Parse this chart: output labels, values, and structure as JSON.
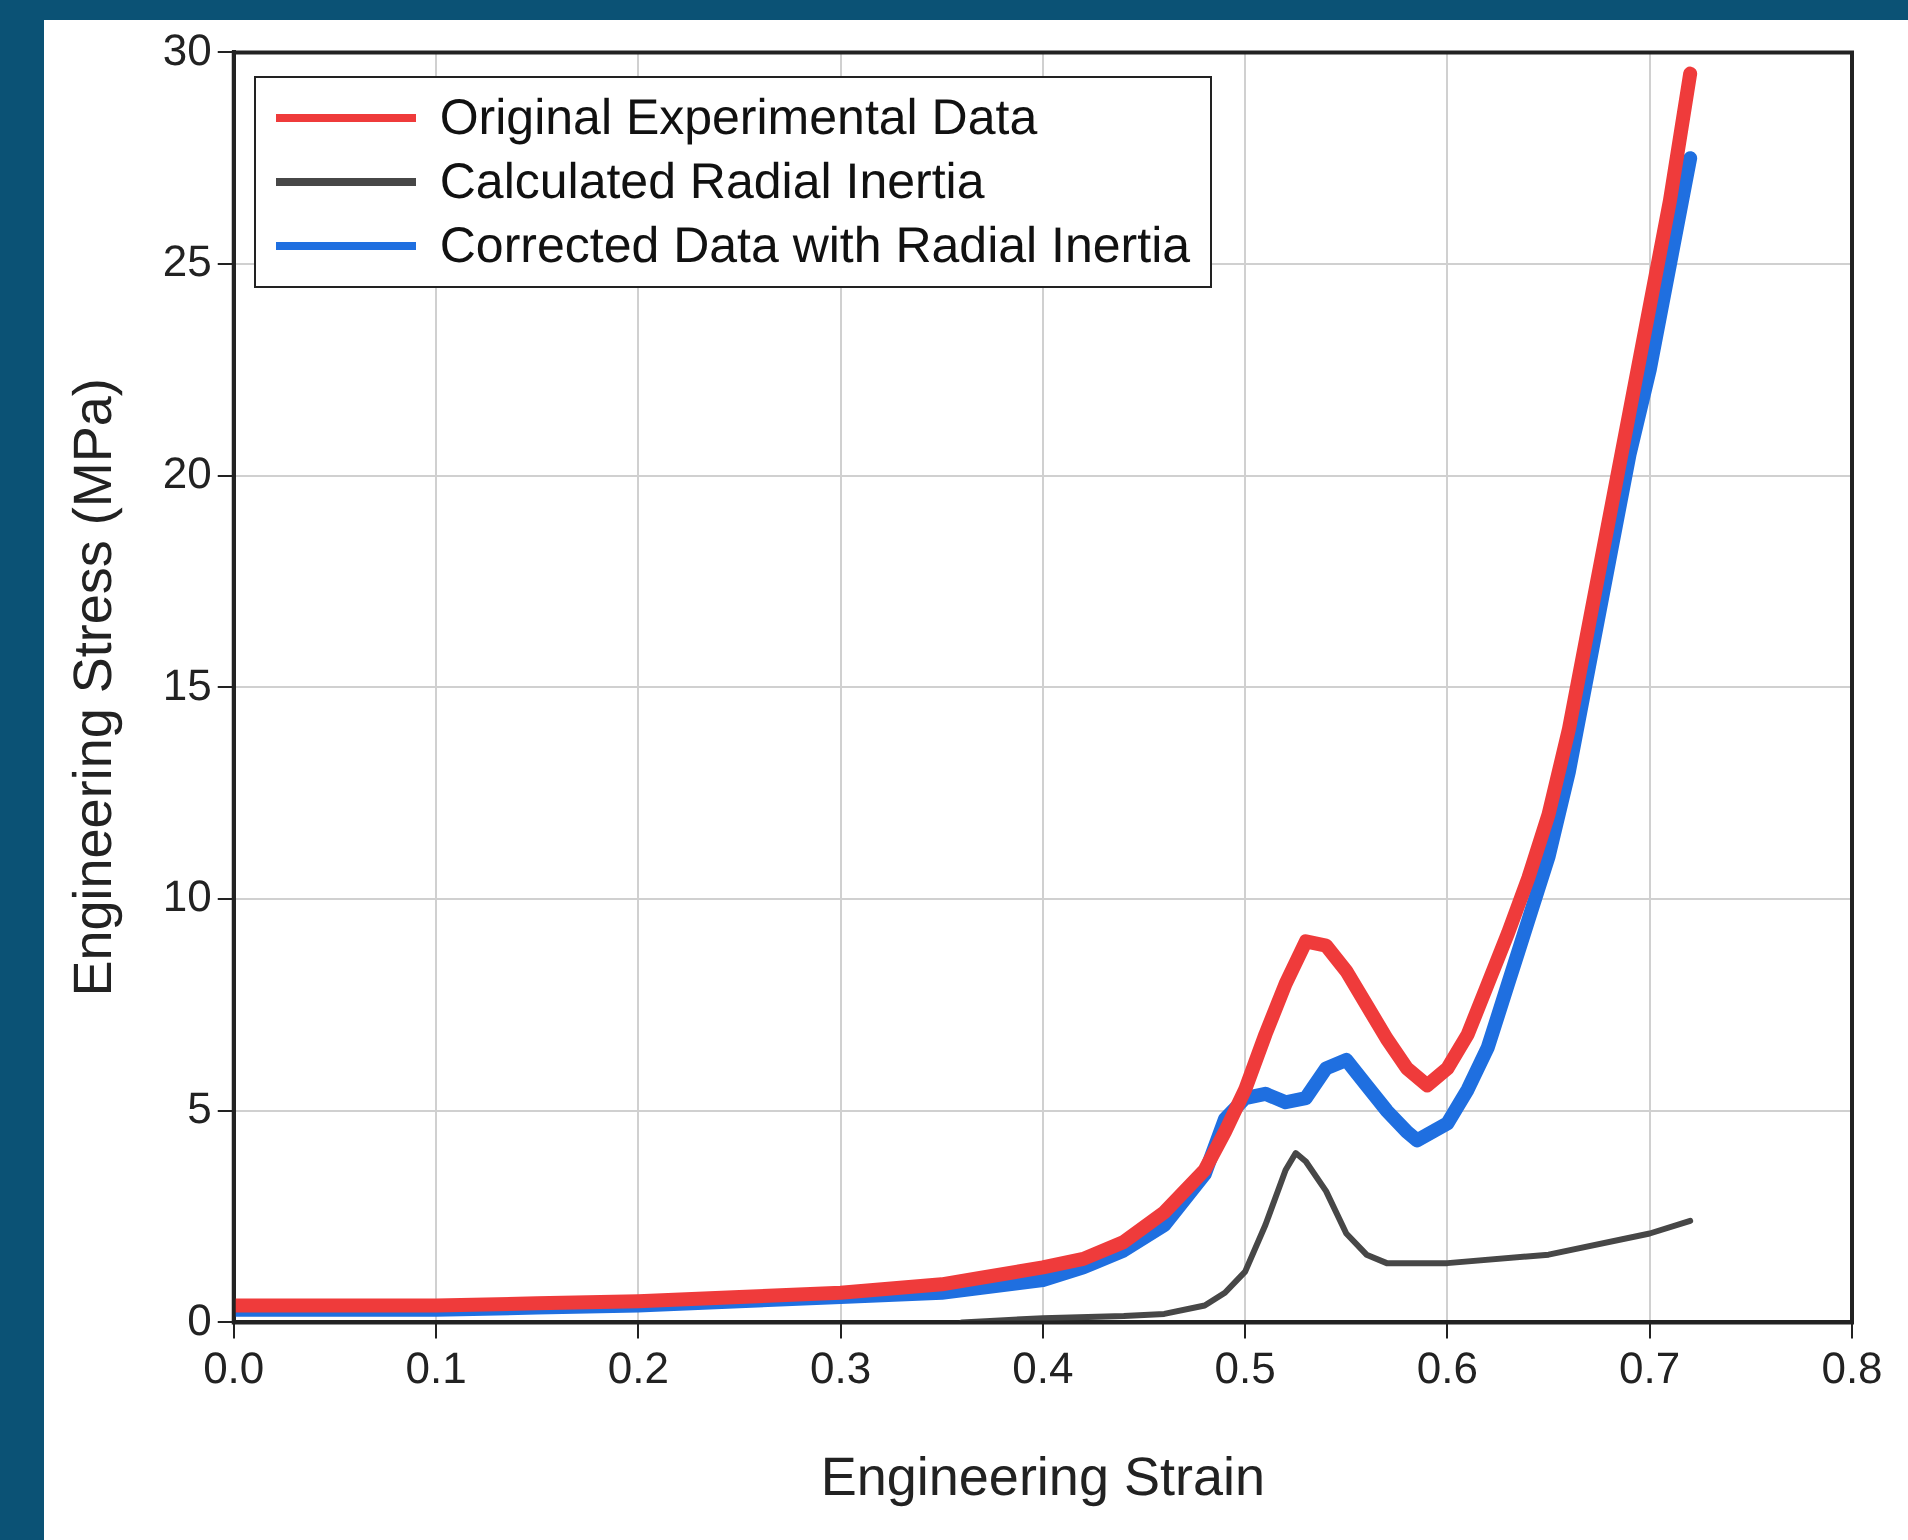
{
  "chart_data": {
    "type": "line",
    "xlabel": "Engineering Strain",
    "ylabel": "Engineering Stress (MPa)",
    "xlim": [
      0,
      0.8
    ],
    "xticks": [
      {
        "value": 0,
        "label": "0.0"
      },
      0.1,
      0.2,
      0.3,
      0.4,
      0.5,
      0.6,
      0.7,
      0.8
    ],
    "ylim": [
      0,
      30
    ],
    "yticks": [
      0,
      5,
      10,
      15,
      20,
      25,
      30
    ],
    "grid": true,
    "legend": "top left",
    "marker": "none",
    "line_style": "solid",
    "series": [
      {
        "name": "Original Experimental Data",
        "color": "#ef3b3b",
        "x": [
          0,
          0.05,
          0.1,
          0.15,
          0.2,
          0.25,
          0.3,
          0.35,
          0.4,
          0.42,
          0.44,
          0.46,
          0.48,
          0.49,
          0.5,
          0.51,
          0.52,
          0.53,
          0.54,
          0.55,
          0.56,
          0.57,
          0.58,
          0.59,
          0.6,
          0.61,
          0.62,
          0.63,
          0.64,
          0.65,
          0.66,
          0.67,
          0.68,
          0.69,
          0.7,
          0.71,
          0.72
        ],
        "values": [
          0.4,
          0.4,
          0.4,
          0.45,
          0.5,
          0.6,
          0.7,
          0.9,
          1.3,
          1.5,
          1.9,
          2.6,
          3.6,
          4.5,
          5.5,
          6.8,
          8,
          9,
          8.9,
          8.3,
          7.5,
          6.7,
          6,
          5.6,
          6,
          6.8,
          8,
          9.2,
          10.5,
          12,
          14,
          16.5,
          19,
          21.5,
          24,
          26.5,
          29.5
        ]
      },
      {
        "name": "Calculated Radial Inertia",
        "color": "#474747",
        "x": [
          0.36,
          0.4,
          0.44,
          0.46,
          0.48,
          0.49,
          0.5,
          0.51,
          0.52,
          0.525,
          0.53,
          0.54,
          0.55,
          0.56,
          0.57,
          0.6,
          0.65,
          0.7,
          0.72
        ],
        "values": [
          0,
          0.1,
          0.15,
          0.2,
          0.4,
          0.7,
          1.2,
          2.3,
          3.6,
          4,
          3.8,
          3.1,
          2.1,
          1.6,
          1.4,
          1.4,
          1.6,
          2.1,
          2.4
        ]
      },
      {
        "name": "Corrected Data with Radial Inertia",
        "color": "#1f6fe0",
        "x": [
          0,
          0.05,
          0.1,
          0.15,
          0.2,
          0.25,
          0.3,
          0.35,
          0.4,
          0.42,
          0.44,
          0.46,
          0.48,
          0.49,
          0.5,
          0.51,
          0.52,
          0.53,
          0.54,
          0.55,
          0.56,
          0.57,
          0.58,
          0.585,
          0.6,
          0.61,
          0.62,
          0.63,
          0.64,
          0.65,
          0.66,
          0.67,
          0.68,
          0.69,
          0.7,
          0.71,
          0.72
        ],
        "values": [
          0.3,
          0.3,
          0.3,
          0.35,
          0.4,
          0.5,
          0.6,
          0.7,
          1,
          1.3,
          1.7,
          2.3,
          3.5,
          4.8,
          5.3,
          5.4,
          5.2,
          5.3,
          6,
          6.2,
          5.6,
          5,
          4.5,
          4.3,
          4.7,
          5.5,
          6.5,
          8,
          9.5,
          11,
          13,
          15.5,
          18,
          20.5,
          22.5,
          25,
          27.5
        ]
      }
    ]
  }
}
